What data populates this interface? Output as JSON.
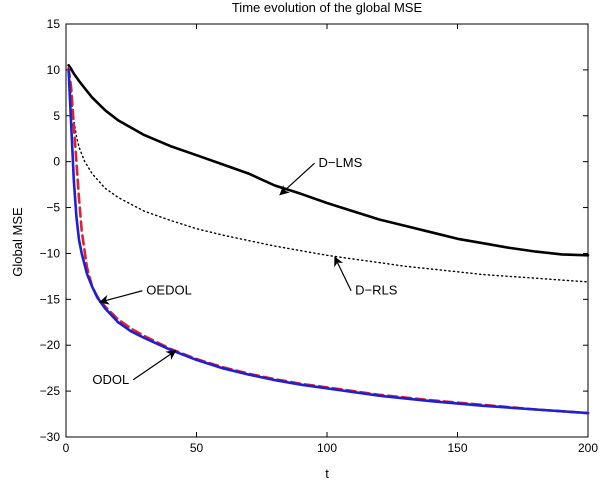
{
  "chart_data": {
    "type": "line",
    "title": "Time evolution of the global MSE",
    "xlabel": "t",
    "ylabel": "Global MSE",
    "xlim": [
      0,
      200
    ],
    "ylim": [
      -30,
      15
    ],
    "xticks": [
      0,
      50,
      100,
      150,
      200
    ],
    "yticks": [
      -30,
      -25,
      -20,
      -15,
      -10,
      -5,
      0,
      5,
      10,
      15
    ],
    "grid": false,
    "legend": "none",
    "series": [
      {
        "name": "D−LMS",
        "color": "#000000",
        "style": "solid",
        "x": [
          1,
          2,
          3,
          5,
          8,
          10,
          15,
          20,
          30,
          40,
          50,
          60,
          70,
          80,
          90,
          100,
          110,
          120,
          130,
          140,
          150,
          160,
          170,
          180,
          190,
          200
        ],
        "y": [
          10.5,
          10.1,
          9.6,
          8.8,
          7.7,
          7.0,
          5.6,
          4.5,
          2.9,
          1.7,
          0.7,
          -0.3,
          -1.3,
          -2.6,
          -3.5,
          -4.5,
          -5.4,
          -6.3,
          -7.0,
          -7.7,
          -8.4,
          -8.9,
          -9.4,
          -9.8,
          -10.1,
          -10.2
        ]
      },
      {
        "name": "D−RLS",
        "color": "#000000",
        "style": "dotted",
        "x": [
          1,
          2,
          3,
          4,
          5,
          7,
          10,
          15,
          20,
          30,
          40,
          50,
          60,
          70,
          80,
          90,
          100,
          110,
          120,
          130,
          140,
          150,
          160,
          170,
          180,
          190,
          200
        ],
        "y": [
          10.0,
          7.0,
          4.5,
          2.8,
          1.6,
          0.1,
          -1.3,
          -2.9,
          -3.9,
          -5.4,
          -6.4,
          -7.3,
          -8.0,
          -8.6,
          -9.2,
          -9.7,
          -10.2,
          -10.6,
          -11.0,
          -11.4,
          -11.7,
          -12.0,
          -12.3,
          -12.5,
          -12.7,
          -12.9,
          -13.1
        ]
      },
      {
        "name": "OEDOL",
        "color": "#e0202a",
        "style": "dashed",
        "x": [
          1,
          2,
          3,
          4,
          5,
          6,
          8,
          10,
          12,
          15,
          20,
          25,
          30,
          40,
          50,
          60,
          70,
          80,
          90,
          100,
          120,
          140,
          160,
          180,
          200
        ],
        "y": [
          10.2,
          8.0,
          4.0,
          0.0,
          -4.0,
          -7.5,
          -11.5,
          -13.6,
          -14.7,
          -15.8,
          -17.2,
          -18.2,
          -19.0,
          -20.4,
          -21.5,
          -22.4,
          -23.1,
          -23.7,
          -24.2,
          -24.6,
          -25.4,
          -26.0,
          -26.5,
          -27.0,
          -27.4
        ]
      },
      {
        "name": "ODOL",
        "color": "#1f1fd6",
        "style": "solid",
        "x": [
          1,
          2,
          3,
          4,
          5,
          6,
          8,
          10,
          12,
          15,
          20,
          25,
          30,
          40,
          50,
          60,
          70,
          80,
          90,
          100,
          120,
          140,
          160,
          180,
          200
        ],
        "y": [
          10.0,
          4.0,
          -2.0,
          -6.0,
          -8.5,
          -10.0,
          -12.2,
          -13.6,
          -14.8,
          -16.0,
          -17.5,
          -18.5,
          -19.2,
          -20.5,
          -21.6,
          -22.5,
          -23.2,
          -23.8,
          -24.3,
          -24.7,
          -25.5,
          -26.1,
          -26.6,
          -27.0,
          -27.4
        ]
      }
    ],
    "annotations": [
      {
        "text": "D−LMS",
        "label_at": [
          96,
          -0.6
        ],
        "arrow_tip": [
          82,
          -3.6
        ]
      },
      {
        "text": "D−RLS",
        "label_at": [
          110,
          -14.5
        ],
        "arrow_tip": [
          103,
          -10.4
        ]
      },
      {
        "text": "OEDOL",
        "label_at": [
          30,
          -14.5
        ],
        "arrow_tip": [
          13,
          -15.3
        ]
      },
      {
        "text": "ODOL",
        "label_at": [
          25,
          -24.2
        ],
        "arrow_tip": [
          42,
          -20.6
        ]
      }
    ]
  }
}
